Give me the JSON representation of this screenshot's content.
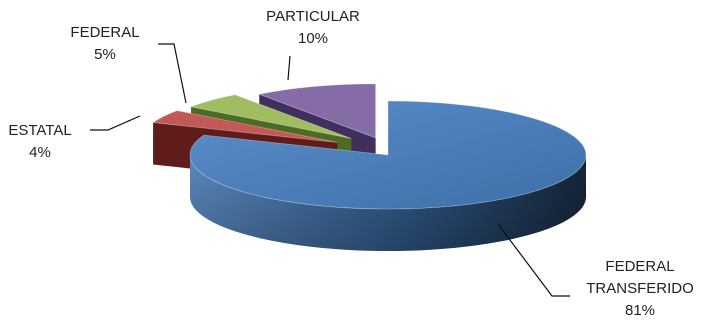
{
  "chart_data": {
    "type": "pie",
    "style": "3d-exploded",
    "title": "",
    "slices": [
      {
        "name": "FEDERAL TRANSFERIDO",
        "label_lines": [
          "FEDERAL",
          "TRANSFERIDO"
        ],
        "value": 81,
        "display": "81%",
        "color": "#4f81bd"
      },
      {
        "name": "ESTATAL",
        "label_lines": [
          "ESTATAL"
        ],
        "value": 4,
        "display": "4%",
        "color": "#c0504d"
      },
      {
        "name": "FEDERAL",
        "label_lines": [
          "FEDERAL"
        ],
        "value": 5,
        "display": "5%",
        "color": "#9bbb59"
      },
      {
        "name": "PARTICULAR",
        "label_lines": [
          "PARTICULAR"
        ],
        "value": 10,
        "display": "10%",
        "color": "#8064a2"
      }
    ]
  }
}
